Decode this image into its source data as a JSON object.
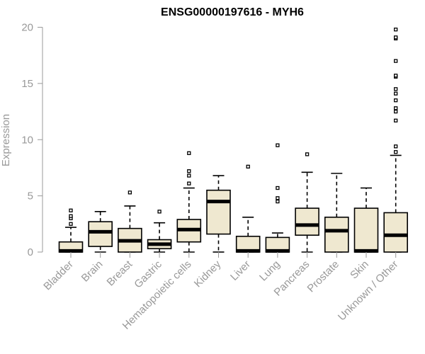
{
  "chart_data": {
    "type": "box",
    "title": "ENSG00000197616 - MYH6",
    "xlabel": "",
    "ylabel": "Expression",
    "ylim": [
      0,
      20
    ],
    "yticks": [
      0,
      5,
      10,
      15,
      20
    ],
    "grid": false,
    "colors": {
      "box_fill": "#efe8d0",
      "stroke": "#000000",
      "axis": "#999999"
    },
    "categories": [
      "Bladder",
      "Brain",
      "Breast",
      "Gastric",
      "Hematopoietic cells",
      "Kidney",
      "Liver",
      "Lung",
      "Pancreas",
      "Prostate",
      "Skin",
      "Unknown / Other"
    ],
    "boxes": [
      {
        "category": "Bladder",
        "q1": 0.0,
        "median": 0.1,
        "q3": 0.9,
        "whisker_low": 0.0,
        "whisker_high": 2.2,
        "outliers": [
          2.5,
          3.0,
          3.2,
          3.7
        ]
      },
      {
        "category": "Brain",
        "q1": 0.5,
        "median": 1.8,
        "q3": 2.7,
        "whisker_low": 0.0,
        "whisker_high": 3.6,
        "outliers": []
      },
      {
        "category": "Breast",
        "q1": 0.0,
        "median": 1.0,
        "q3": 2.1,
        "whisker_low": 0.0,
        "whisker_high": 4.1,
        "outliers": [
          5.3
        ]
      },
      {
        "category": "Gastric",
        "q1": 0.3,
        "median": 0.7,
        "q3": 1.1,
        "whisker_low": 0.0,
        "whisker_high": 2.6,
        "outliers": [
          3.6
        ]
      },
      {
        "category": "Hematopoietic cells",
        "q1": 0.9,
        "median": 2.0,
        "q3": 2.9,
        "whisker_low": 0.0,
        "whisker_high": 5.7,
        "outliers": [
          6.1,
          6.8,
          7.2,
          8.8
        ]
      },
      {
        "category": "Kidney",
        "q1": 1.6,
        "median": 4.5,
        "q3": 5.5,
        "whisker_low": 0.0,
        "whisker_high": 6.8,
        "outliers": []
      },
      {
        "category": "Liver",
        "q1": 0.0,
        "median": 0.1,
        "q3": 1.4,
        "whisker_low": 0.0,
        "whisker_high": 3.1,
        "outliers": [
          7.6
        ]
      },
      {
        "category": "Lung",
        "q1": 0.0,
        "median": 0.1,
        "q3": 1.3,
        "whisker_low": 0.0,
        "whisker_high": 1.7,
        "outliers": [
          4.5,
          4.8,
          5.7,
          9.5
        ]
      },
      {
        "category": "Pancreas",
        "q1": 1.5,
        "median": 2.4,
        "q3": 3.9,
        "whisker_low": 0.0,
        "whisker_high": 7.1,
        "outliers": [
          8.7
        ]
      },
      {
        "category": "Prostate",
        "q1": 0.0,
        "median": 1.9,
        "q3": 3.1,
        "whisker_low": 0.0,
        "whisker_high": 7.0,
        "outliers": []
      },
      {
        "category": "Skin",
        "q1": 0.0,
        "median": 0.1,
        "q3": 3.9,
        "whisker_low": 0.0,
        "whisker_high": 5.7,
        "outliers": []
      },
      {
        "category": "Unknown / Other",
        "q1": 0.0,
        "median": 1.5,
        "q3": 3.5,
        "whisker_low": 0.0,
        "whisker_high": 8.6,
        "outliers": [
          8.9,
          9.4,
          11.7,
          12.5,
          12.8,
          13.5,
          14.1,
          14.5,
          15.6,
          15.7,
          17.0,
          19.0,
          19.1,
          19.8
        ]
      }
    ]
  }
}
